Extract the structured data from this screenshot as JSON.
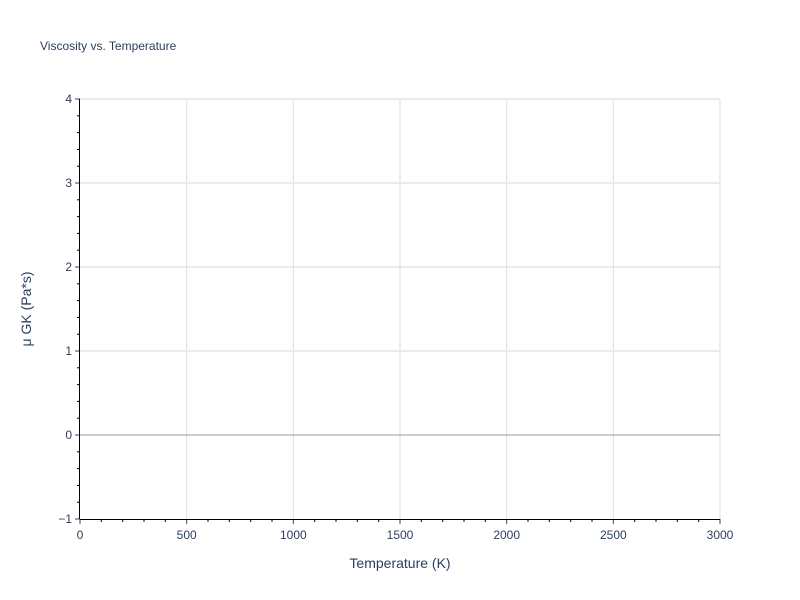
{
  "chart_data": {
    "type": "scatter",
    "title": "Viscosity vs. Temperature",
    "xlabel": "Temperature (K)",
    "ylabel": "μ GK (Pa*s)",
    "xlim": [
      0,
      3000
    ],
    "ylim": [
      -1,
      4
    ],
    "xticks": [
      0,
      500,
      1000,
      1500,
      2000,
      2500,
      3000
    ],
    "yticks": [
      -1,
      0,
      1,
      2,
      3,
      4
    ],
    "xtick_labels": [
      "0",
      "500",
      "1000",
      "1500",
      "2000",
      "2500",
      "3000"
    ],
    "ytick_labels": [
      "−1",
      "0",
      "1",
      "2",
      "3",
      "4"
    ],
    "x_minor_step": 100,
    "y_minor_step": 0.2,
    "grid": true,
    "series": []
  }
}
